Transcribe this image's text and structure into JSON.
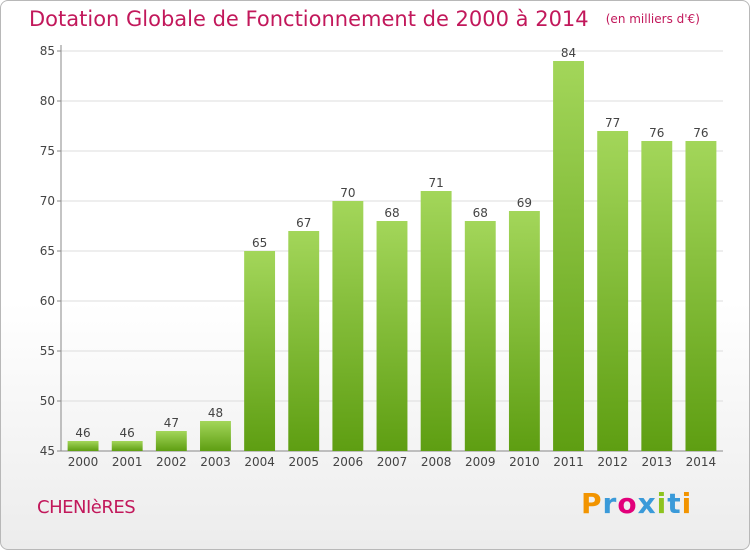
{
  "header": {
    "title": "Dotation Globale de Fonctionnement de 2000 à 2014",
    "subtitle": "(en milliers d'€)"
  },
  "commune": "CHENIèRES",
  "logo": {
    "text": "Proxiti",
    "letter_colors": [
      "#f29400",
      "#3a9ad9",
      "#e2007a",
      "#3a9ad9",
      "#8ec31f",
      "#3a9ad9",
      "#f29400"
    ]
  },
  "colors": {
    "bar_light": "#a3d65a",
    "bar_dark": "#5e9e12",
    "grid": "#dddddd",
    "title": "#c2185b"
  },
  "chart_data": {
    "type": "bar",
    "categories": [
      "2000",
      "2001",
      "2002",
      "2003",
      "2004",
      "2005",
      "2006",
      "2007",
      "2008",
      "2009",
      "2010",
      "2011",
      "2012",
      "2013",
      "2014"
    ],
    "values": [
      46,
      46,
      47,
      48,
      65,
      67,
      70,
      68,
      71,
      68,
      69,
      84,
      77,
      76,
      76
    ],
    "title": "Dotation Globale de Fonctionnement de 2000 à 2014",
    "ylim": [
      45,
      85
    ],
    "yticks": [
      45,
      50,
      55,
      60,
      65,
      70,
      75,
      80,
      85
    ],
    "grid": true,
    "data_labels": true
  }
}
